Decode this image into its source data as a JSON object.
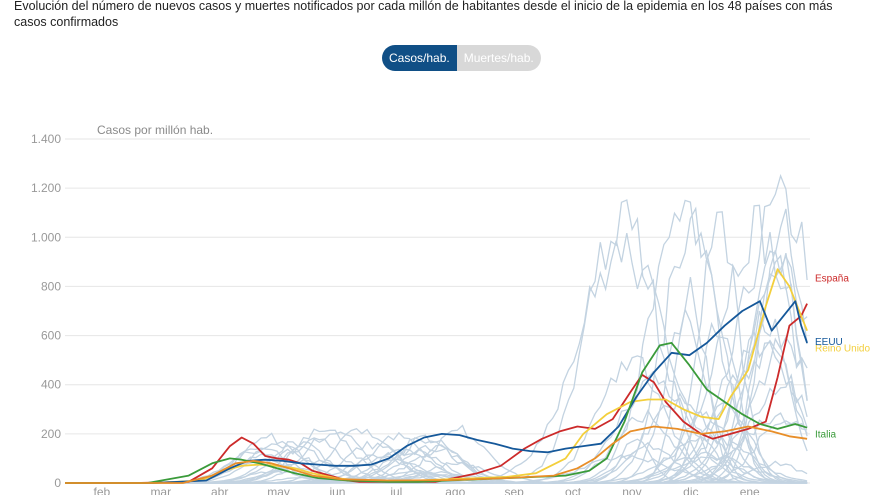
{
  "description": "Evolución del número de nuevos casos y muertes notificados por cada millón de habitantes desde el inicio de la epidemia en los 48 países con más casos confirmados",
  "toggle": {
    "active": "Casos/hab.",
    "inactive": "Muertes/hab."
  },
  "colors": {
    "toggle_active": "#104f86",
    "background_series": "#c3d3e1"
  },
  "chart_data": {
    "type": "line",
    "ylabel": "Casos por millón hab.",
    "ylim": [
      0,
      1400
    ],
    "yticks": [
      0,
      200,
      400,
      600,
      800,
      1000,
      1200,
      1400
    ],
    "ytick_labels": [
      "0",
      "200",
      "400",
      "600",
      "800",
      "1.000",
      "1.200",
      "1.400"
    ],
    "x_tick_labels": [
      "feb",
      "mar",
      "abr",
      "may",
      "jun",
      "jul",
      "ago",
      "sep",
      "oct",
      "nov",
      "dic",
      "ene"
    ],
    "x_tick_pos": [
      1,
      2,
      3,
      4,
      5,
      6,
      7,
      8,
      9,
      10,
      11,
      12
    ],
    "xlim": [
      0,
      12.65
    ],
    "series": [
      {
        "name": "España",
        "color": "#cc2a2a",
        "points": [
          [
            0,
            0
          ],
          [
            1.2,
            0
          ],
          [
            2.1,
            5
          ],
          [
            2.5,
            60
          ],
          [
            2.8,
            150
          ],
          [
            3.0,
            185
          ],
          [
            3.2,
            160
          ],
          [
            3.4,
            110
          ],
          [
            3.6,
            100
          ],
          [
            3.8,
            95
          ],
          [
            4.0,
            80
          ],
          [
            4.2,
            50
          ],
          [
            4.5,
            30
          ],
          [
            4.8,
            10
          ],
          [
            5.0,
            5
          ],
          [
            5.5,
            5
          ],
          [
            6.0,
            5
          ],
          [
            6.3,
            5
          ],
          [
            6.6,
            20
          ],
          [
            7.0,
            40
          ],
          [
            7.4,
            70
          ],
          [
            7.8,
            140
          ],
          [
            8.1,
            180
          ],
          [
            8.4,
            210
          ],
          [
            8.7,
            230
          ],
          [
            9.0,
            220
          ],
          [
            9.3,
            260
          ],
          [
            9.6,
            370
          ],
          [
            9.8,
            440
          ],
          [
            10.0,
            410
          ],
          [
            10.2,
            330
          ],
          [
            10.5,
            250
          ],
          [
            10.8,
            200
          ],
          [
            11.0,
            180
          ],
          [
            11.3,
            200
          ],
          [
            11.6,
            220
          ],
          [
            11.9,
            250
          ],
          [
            12.1,
            430
          ],
          [
            12.3,
            640
          ],
          [
            12.5,
            680
          ],
          [
            12.6,
            730
          ]
        ]
      },
      {
        "name": "Reino Unido",
        "color": "#f3cf3c",
        "points": [
          [
            0,
            0
          ],
          [
            1.5,
            0
          ],
          [
            2.3,
            10
          ],
          [
            2.7,
            50
          ],
          [
            3.0,
            70
          ],
          [
            3.3,
            75
          ],
          [
            3.6,
            70
          ],
          [
            3.9,
            60
          ],
          [
            4.2,
            40
          ],
          [
            4.6,
            20
          ],
          [
            5.0,
            10
          ],
          [
            5.5,
            8
          ],
          [
            6.0,
            10
          ],
          [
            6.5,
            15
          ],
          [
            7.0,
            20
          ],
          [
            7.5,
            25
          ],
          [
            8.0,
            40
          ],
          [
            8.5,
            100
          ],
          [
            8.8,
            200
          ],
          [
            9.2,
            280
          ],
          [
            9.6,
            330
          ],
          [
            9.9,
            340
          ],
          [
            10.2,
            340
          ],
          [
            10.5,
            300
          ],
          [
            10.8,
            270
          ],
          [
            11.1,
            260
          ],
          [
            11.3,
            350
          ],
          [
            11.6,
            460
          ],
          [
            11.9,
            720
          ],
          [
            12.1,
            870
          ],
          [
            12.3,
            800
          ],
          [
            12.5,
            680
          ],
          [
            12.6,
            620
          ]
        ]
      },
      {
        "name": "EEUU",
        "color": "#15589a",
        "points": [
          [
            0,
            0
          ],
          [
            1.5,
            0
          ],
          [
            2.4,
            10
          ],
          [
            2.8,
            60
          ],
          [
            3.1,
            90
          ],
          [
            3.4,
            95
          ],
          [
            3.7,
            90
          ],
          [
            4.0,
            80
          ],
          [
            4.3,
            75
          ],
          [
            4.6,
            70
          ],
          [
            4.9,
            70
          ],
          [
            5.2,
            75
          ],
          [
            5.5,
            100
          ],
          [
            5.8,
            150
          ],
          [
            6.1,
            185
          ],
          [
            6.4,
            200
          ],
          [
            6.7,
            195
          ],
          [
            7.0,
            175
          ],
          [
            7.3,
            160
          ],
          [
            7.6,
            140
          ],
          [
            7.9,
            130
          ],
          [
            8.2,
            125
          ],
          [
            8.5,
            140
          ],
          [
            8.8,
            150
          ],
          [
            9.1,
            160
          ],
          [
            9.4,
            230
          ],
          [
            9.7,
            350
          ],
          [
            10.0,
            450
          ],
          [
            10.3,
            530
          ],
          [
            10.6,
            520
          ],
          [
            10.9,
            570
          ],
          [
            11.2,
            640
          ],
          [
            11.5,
            700
          ],
          [
            11.8,
            740
          ],
          [
            12.0,
            620
          ],
          [
            12.2,
            680
          ],
          [
            12.4,
            740
          ],
          [
            12.5,
            640
          ],
          [
            12.6,
            570
          ]
        ]
      },
      {
        "name": "Italia",
        "color": "#3a9b3a",
        "points": [
          [
            0,
            0
          ],
          [
            1.4,
            0
          ],
          [
            2.1,
            30
          ],
          [
            2.5,
            80
          ],
          [
            2.8,
            100
          ],
          [
            3.0,
            95
          ],
          [
            3.3,
            80
          ],
          [
            3.6,
            60
          ],
          [
            3.9,
            40
          ],
          [
            4.3,
            20
          ],
          [
            4.8,
            10
          ],
          [
            5.5,
            5
          ],
          [
            6.0,
            5
          ],
          [
            6.5,
            10
          ],
          [
            7.0,
            15
          ],
          [
            7.5,
            20
          ],
          [
            8.0,
            25
          ],
          [
            8.5,
            30
          ],
          [
            8.9,
            50
          ],
          [
            9.2,
            100
          ],
          [
            9.5,
            250
          ],
          [
            9.8,
            450
          ],
          [
            10.1,
            560
          ],
          [
            10.3,
            570
          ],
          [
            10.6,
            480
          ],
          [
            10.9,
            380
          ],
          [
            11.2,
            330
          ],
          [
            11.5,
            280
          ],
          [
            11.8,
            240
          ],
          [
            12.1,
            220
          ],
          [
            12.4,
            240
          ],
          [
            12.6,
            225
          ]
        ]
      },
      {
        "name": "",
        "color": "#e88e28",
        "points": [
          [
            0,
            0
          ],
          [
            2.0,
            0
          ],
          [
            2.5,
            30
          ],
          [
            2.9,
            80
          ],
          [
            3.2,
            90
          ],
          [
            3.5,
            80
          ],
          [
            3.8,
            60
          ],
          [
            4.2,
            30
          ],
          [
            4.7,
            15
          ],
          [
            5.5,
            10
          ],
          [
            6.5,
            12
          ],
          [
            7.5,
            20
          ],
          [
            8.3,
            30
          ],
          [
            8.7,
            60
          ],
          [
            9.0,
            100
          ],
          [
            9.3,
            160
          ],
          [
            9.6,
            210
          ],
          [
            10.0,
            230
          ],
          [
            10.4,
            220
          ],
          [
            10.8,
            200
          ],
          [
            11.2,
            210
          ],
          [
            11.6,
            230
          ],
          [
            12.0,
            210
          ],
          [
            12.3,
            190
          ],
          [
            12.6,
            180
          ]
        ]
      }
    ]
  }
}
